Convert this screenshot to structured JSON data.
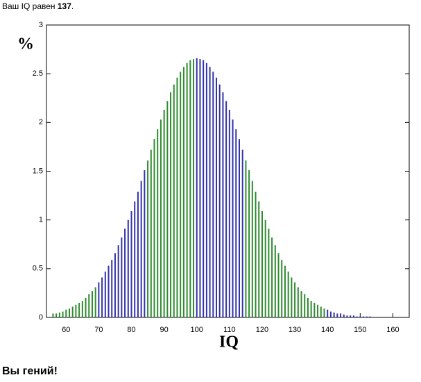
{
  "header": {
    "prefix": "Ваш IQ равен",
    "score": "137",
    "suffix": "."
  },
  "verdict": "Вы гений!",
  "chart_data": {
    "type": "bar",
    "ylabel": "%",
    "xlabel": "IQ",
    "xlim": [
      54,
      165
    ],
    "xticks": [
      60,
      70,
      80,
      90,
      100,
      110,
      120,
      130,
      140,
      150,
      160
    ],
    "ylim": [
      0,
      3
    ],
    "yticks": [
      0,
      0.5,
      1,
      1.5,
      2,
      2.5,
      3
    ],
    "series": [
      {
        "color": "#2e8b2e",
        "x": [
          56,
          57,
          58,
          59,
          60,
          61,
          62,
          63,
          64,
          65,
          66,
          67,
          68,
          69
        ],
        "values": [
          0.04,
          0.04,
          0.05,
          0.06,
          0.08,
          0.09,
          0.11,
          0.13,
          0.15,
          0.17,
          0.2,
          0.24,
          0.27,
          0.31
        ]
      },
      {
        "color": "#3333aa",
        "x": [
          70,
          71,
          72,
          73,
          74,
          75,
          76,
          77,
          78,
          79,
          80,
          81,
          82,
          83,
          84
        ],
        "values": [
          0.36,
          0.41,
          0.47,
          0.53,
          0.59,
          0.66,
          0.74,
          0.82,
          0.91,
          1,
          1.09,
          1.19,
          1.29,
          1.4,
          1.51
        ]
      },
      {
        "color": "#2e8b2e",
        "x": [
          85,
          86,
          87,
          88,
          89,
          90,
          91,
          92,
          93,
          94,
          95,
          96,
          97,
          98,
          99
        ],
        "values": [
          1.61,
          1.72,
          1.83,
          1.93,
          2.03,
          2.13,
          2.22,
          2.31,
          2.39,
          2.46,
          2.52,
          2.57,
          2.61,
          2.64,
          2.65
        ]
      },
      {
        "color": "#3333aa",
        "x": [
          100,
          101,
          102,
          103,
          104,
          105,
          106,
          107,
          108,
          109,
          110,
          111,
          112,
          113,
          114
        ],
        "values": [
          2.66,
          2.65,
          2.64,
          2.61,
          2.57,
          2.52,
          2.46,
          2.39,
          2.31,
          2.22,
          2.13,
          2.03,
          1.93,
          1.83,
          1.72
        ]
      },
      {
        "color": "#2e8b2e",
        "x": [
          115,
          116,
          117,
          118,
          119,
          120,
          121,
          122,
          123,
          124,
          125,
          126,
          127,
          128,
          129,
          130,
          131,
          132,
          133,
          134,
          135,
          136,
          137,
          138,
          139
        ],
        "values": [
          1.61,
          1.51,
          1.4,
          1.29,
          1.19,
          1.09,
          1,
          0.91,
          0.82,
          0.74,
          0.66,
          0.59,
          0.53,
          0.47,
          0.41,
          0.36,
          0.31,
          0.27,
          0.24,
          0.2,
          0.17,
          0.15,
          0.13,
          0.11,
          0.09
        ]
      },
      {
        "color": "#3333aa",
        "x": [
          140,
          141,
          142,
          143,
          144,
          145,
          146,
          147,
          148,
          149,
          150,
          151,
          152,
          153,
          154,
          155,
          156,
          157,
          158,
          159,
          160,
          161,
          162,
          163,
          164
        ],
        "values": [
          0.08,
          0.06,
          0.05,
          0.04,
          0.04,
          0.03,
          0.02,
          0.02,
          0.02,
          0.01,
          0.01,
          0.01,
          0.01,
          0.01,
          0,
          0,
          0,
          0,
          0,
          0,
          0,
          0,
          0,
          0,
          0
        ]
      }
    ]
  }
}
